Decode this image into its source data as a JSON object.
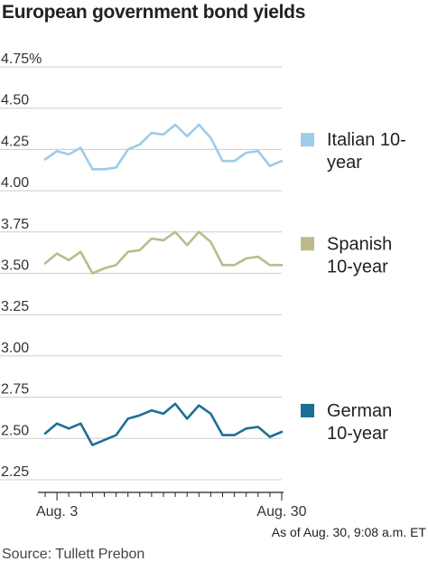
{
  "title": "European government bond yields",
  "note": "As of Aug. 30, 9:08 a.m. ET",
  "source": "Source: Tullett Prebon",
  "colors": {
    "italian": "#9ecbea",
    "spanish": "#bdba8c",
    "german": "#1b6f96",
    "grid": "#cccccc",
    "axis": "#222222"
  },
  "chart_data": {
    "type": "line",
    "title": "European government bond yields",
    "ylim": [
      2.25,
      4.75
    ],
    "yticks": [
      "4.75%",
      "4.50",
      "4.25",
      "4.00",
      "3.75",
      "3.50",
      "3.25",
      "3.00",
      "2.75",
      "2.50",
      "2.25"
    ],
    "ytick_values": [
      4.75,
      4.5,
      4.25,
      4.0,
      3.75,
      3.5,
      3.25,
      3.0,
      2.75,
      2.5,
      2.25
    ],
    "xticks": [
      "Aug. 3",
      "Aug. 30"
    ],
    "xtick_index": [
      1,
      20
    ],
    "grid": true,
    "legend": "right, next to each line",
    "series": [
      {
        "key": "italian",
        "name": "Italian 10-year",
        "legend_lines": [
          "Italian 10-",
          "year"
        ],
        "values": [
          4.19,
          4.24,
          4.22,
          4.26,
          4.13,
          4.13,
          4.14,
          4.25,
          4.28,
          4.35,
          4.34,
          4.4,
          4.33,
          4.4,
          4.32,
          4.18,
          4.18,
          4.23,
          4.24,
          4.15,
          4.18
        ]
      },
      {
        "key": "spanish",
        "name": "Spanish 10-year",
        "legend_lines": [
          "Spanish",
          "10-year"
        ],
        "values": [
          3.56,
          3.62,
          3.58,
          3.63,
          3.5,
          3.53,
          3.55,
          3.63,
          3.64,
          3.71,
          3.7,
          3.75,
          3.67,
          3.75,
          3.69,
          3.55,
          3.55,
          3.59,
          3.6,
          3.55,
          3.55
        ]
      },
      {
        "key": "german",
        "name": "German 10-year",
        "legend_lines": [
          "German",
          "10-year"
        ],
        "values": [
          2.53,
          2.59,
          2.56,
          2.59,
          2.46,
          2.49,
          2.52,
          2.62,
          2.64,
          2.67,
          2.65,
          2.71,
          2.62,
          2.7,
          2.65,
          2.52,
          2.52,
          2.56,
          2.57,
          2.51,
          2.54
        ]
      }
    ]
  }
}
